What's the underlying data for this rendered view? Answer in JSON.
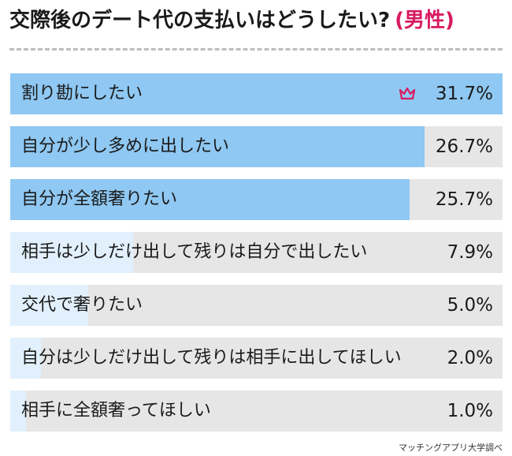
{
  "title": {
    "main": "交際後のデート代の支払いはどうしたい?",
    "sub": "(男性)"
  },
  "source": "マッチングアプリ大学調べ",
  "colors": {
    "bar_fill": "#8fc8f2",
    "bar_fill_small": "#e1f0fc",
    "track": "#e6e6e6",
    "accent": "#d81b60",
    "divider": "#bdbdbd"
  },
  "icons": {
    "top_item": "crown-icon"
  },
  "chart_data": {
    "type": "bar",
    "orientation": "horizontal",
    "title": "交際後のデート代の支払いはどうしたい?(男性)",
    "categories": [
      "割り勘にしたい",
      "自分が少し多めに出したい",
      "自分が全額奢りたい",
      "相手は少しだけ出して残りは自分で出したい",
      "交代で奢りたい",
      "自分は少しだけ出して残りは相手に出してほしい",
      "相手に全額奢ってほしい"
    ],
    "values": [
      31.7,
      26.7,
      25.7,
      7.9,
      5.0,
      2.0,
      1.0
    ],
    "value_labels": [
      "31.7%",
      "26.7%",
      "25.7%",
      "7.9%",
      "5.0%",
      "2.0%",
      "1.0%"
    ],
    "unit": "%",
    "xlim": [
      0,
      31.7
    ],
    "grid": false,
    "legend": "none"
  }
}
